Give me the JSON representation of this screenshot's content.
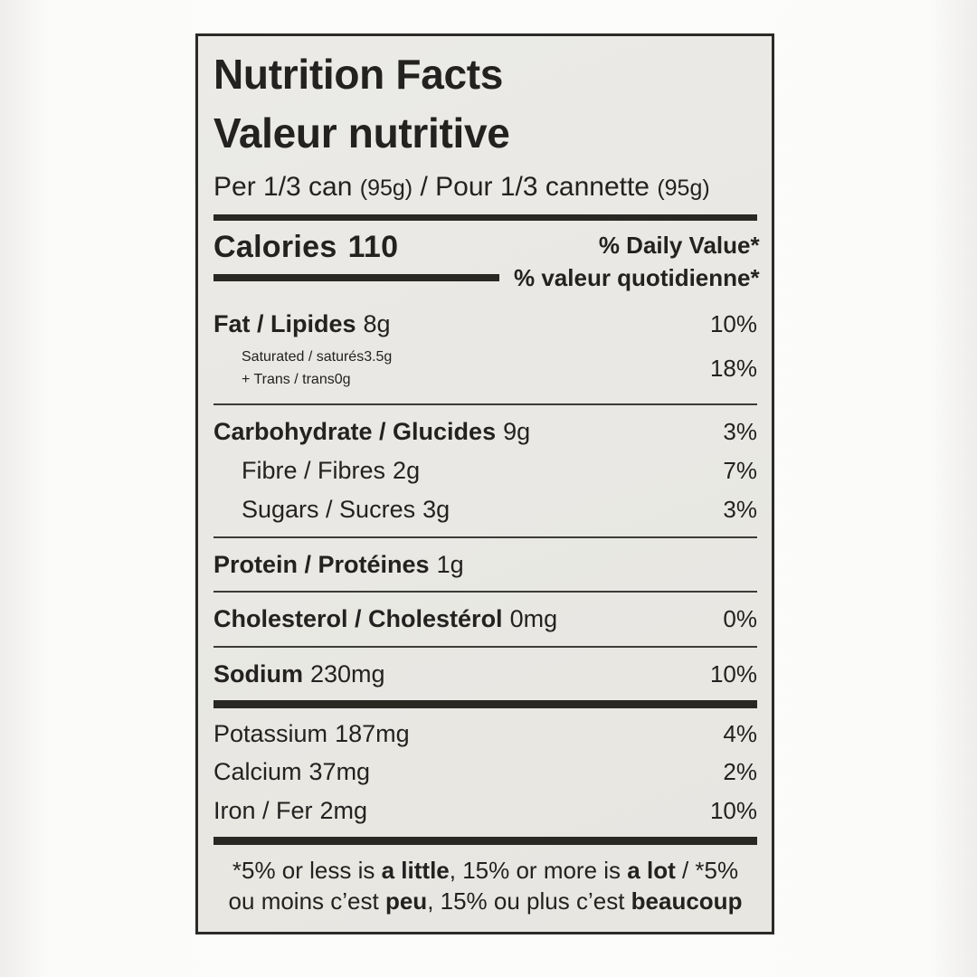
{
  "colors": {
    "label_bg": "#e9e8e4",
    "ink": "#232220"
  },
  "header": {
    "title_en": "Nutrition Facts",
    "title_fr": "Valeur nutritive",
    "serving_en": "Per 1/3 can ",
    "serving_qty1": "(95g)",
    "serving_sep": " / ",
    "serving_fr": "Pour 1/3 cannette ",
    "serving_qty2": "(95g)"
  },
  "calories": {
    "label": "Calories",
    "value": "110"
  },
  "dv_header": {
    "en": "% Daily Value*",
    "fr": "% valeur quotidienne*"
  },
  "nutrients": {
    "fat": {
      "label": "Fat / Lipides",
      "amount": "8g",
      "dv": "10%"
    },
    "saturated": {
      "label": "Saturated / saturés",
      "amount": "3.5g"
    },
    "trans": {
      "label": "+ Trans / trans",
      "amount": "0g",
      "dv": "18%"
    },
    "carbohydrate": {
      "label": "Carbohydrate / Glucides",
      "amount": "9g",
      "dv": "3%"
    },
    "fibre": {
      "label": "Fibre / Fibres",
      "amount": "2g",
      "dv": "7%"
    },
    "sugars": {
      "label": "Sugars / Sucres",
      "amount": "3g",
      "dv": "3%"
    },
    "protein": {
      "label": "Protein / Protéines",
      "amount": "1g"
    },
    "cholesterol": {
      "label": "Cholesterol / Cholestérol",
      "amount": "0mg",
      "dv": "0%"
    },
    "sodium": {
      "label": "Sodium",
      "amount": "230mg",
      "dv": "10%"
    },
    "potassium": {
      "label": "Potassium",
      "amount": "187mg",
      "dv": "4%"
    },
    "calcium": {
      "label": "Calcium",
      "amount": "37mg",
      "dv": "2%"
    },
    "iron": {
      "label": "Iron / Fer",
      "amount": "2mg",
      "dv": "10%"
    }
  },
  "footnote": {
    "en_1": "*5% or less is ",
    "en_b1": "a little",
    "en_2": ", 15% or more is ",
    "en_b2": "a lot",
    "en_3": " / *5%",
    "fr_1": "ou moins c’est ",
    "fr_b1": "peu",
    "fr_2": ", 15% ou plus c’est ",
    "fr_b2": "beaucoup"
  }
}
